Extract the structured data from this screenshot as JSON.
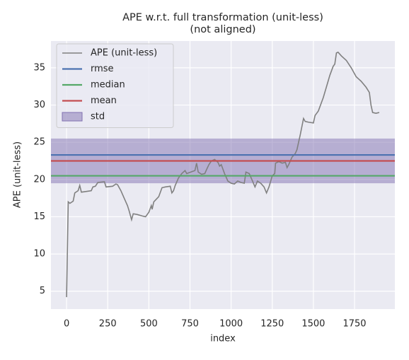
{
  "chart_data": {
    "type": "line",
    "title": "APE w.r.t. full transformation (unit-less)",
    "subtitle": "(not aligned)",
    "x_label": "index",
    "y_label": "APE (unit-less)",
    "xlim": [
      -95,
      1995
    ],
    "ylim": [
      2.6,
      38.6
    ],
    "xticks": [
      0,
      250,
      500,
      750,
      1000,
      1250,
      1500,
      1750
    ],
    "yticks": [
      5,
      10,
      15,
      20,
      25,
      30,
      35
    ],
    "grid": true,
    "legend": "upper left",
    "x": [
      0,
      10,
      20,
      40,
      50,
      70,
      80,
      90,
      120,
      150,
      160,
      175,
      190,
      230,
      240,
      280,
      300,
      310,
      330,
      350,
      370,
      380,
      395,
      405,
      430,
      460,
      480,
      500,
      515,
      520,
      530,
      560,
      580,
      600,
      630,
      640,
      650,
      660,
      680,
      700,
      720,
      730,
      780,
      790,
      800,
      820,
      840,
      850,
      865,
      880,
      900,
      920,
      930,
      940,
      960,
      980,
      1000,
      1020,
      1040,
      1060,
      1080,
      1090,
      1110,
      1130,
      1145,
      1160,
      1180,
      1200,
      1215,
      1230,
      1250,
      1265,
      1270,
      1290,
      1310,
      1330,
      1340,
      1350,
      1370,
      1390,
      1400,
      1420,
      1440,
      1450,
      1470,
      1500,
      1510,
      1530,
      1560,
      1580,
      1600,
      1620,
      1630,
      1640,
      1650,
      1670,
      1700,
      1730,
      1760,
      1790,
      1820,
      1840,
      1850,
      1860,
      1880,
      1900
    ],
    "series": [
      {
        "name": "APE (unit-less)",
        "color": "#808080",
        "values": [
          4.2,
          17.0,
          16.8,
          17.1,
          18.2,
          18.5,
          19.2,
          18.3,
          18.4,
          18.5,
          19.0,
          19.1,
          19.6,
          19.7,
          19.0,
          19.1,
          19.4,
          19.3,
          18.5,
          17.5,
          16.5,
          15.8,
          14.6,
          15.4,
          15.3,
          15.1,
          15.0,
          15.6,
          16.5,
          16.0,
          17.0,
          17.7,
          18.9,
          19.0,
          19.1,
          18.2,
          18.5,
          19.2,
          20.2,
          20.8,
          21.2,
          20.8,
          21.2,
          22.2,
          21.0,
          20.7,
          20.8,
          21.3,
          22.0,
          22.5,
          22.7,
          22.3,
          21.8,
          22.0,
          20.8,
          19.8,
          19.5,
          19.4,
          19.8,
          19.6,
          19.5,
          21.0,
          20.8,
          19.8,
          19.0,
          19.8,
          19.5,
          19.0,
          18.2,
          19.0,
          20.5,
          20.8,
          22.2,
          22.4,
          22.2,
          22.3,
          21.6,
          22.0,
          23.0,
          23.5,
          24.0,
          26.0,
          28.2,
          27.8,
          27.7,
          27.6,
          28.6,
          29.2,
          31.0,
          32.5,
          34.0,
          35.2,
          35.5,
          37.0,
          37.1,
          36.6,
          36.0,
          35.0,
          33.8,
          33.2,
          32.4,
          31.7,
          30.0,
          29.0,
          28.9,
          29.0
        ]
      }
    ],
    "stats": [
      {
        "name": "rmse",
        "color": "#4c72b0",
        "value": 23.3
      },
      {
        "name": "median",
        "color": "#55a868",
        "value": 20.5
      },
      {
        "name": "mean",
        "color": "#c44e52",
        "value": 22.5
      },
      {
        "name": "std",
        "color": "#8172b2",
        "value": 3.0
      }
    ]
  }
}
